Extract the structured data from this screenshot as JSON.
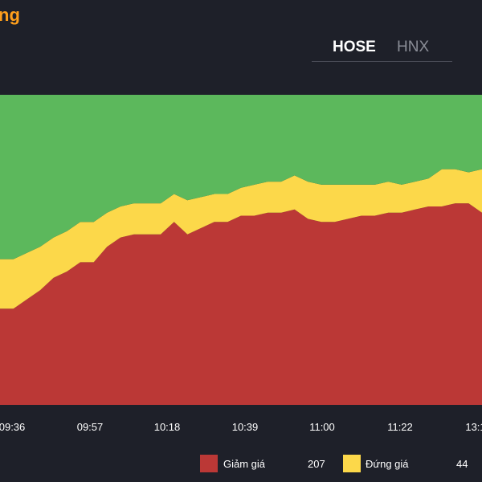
{
  "header": {
    "title": "ng",
    "tabs": [
      {
        "label": "HOSE",
        "active": true
      },
      {
        "label": "HNX",
        "active": false
      }
    ]
  },
  "colors": {
    "background": "#1e2029",
    "decrease": "#bb3836",
    "unchanged": "#fcd84a",
    "increase": "#5cb85c",
    "accent": "#ff9f1c"
  },
  "legend": [
    {
      "label": "Giảm giá",
      "value": "207",
      "color": "#bb3836"
    },
    {
      "label": "Đứng giá",
      "value": "44",
      "color": "#fcd84a"
    }
  ],
  "chart_data": {
    "type": "area",
    "stacked": true,
    "normalized_percent": true,
    "xticks": [
      "09:36",
      "09:57",
      "10:18",
      "10:39",
      "11:00",
      "11:22",
      "13:1"
    ],
    "x_minutes": [
      0,
      5,
      10,
      15,
      20,
      25,
      30,
      35,
      40,
      45,
      50,
      55,
      60,
      65,
      70,
      75,
      80,
      85,
      90,
      95,
      100,
      105,
      110,
      115,
      120,
      125,
      130,
      135,
      140,
      145,
      150,
      155,
      160,
      165,
      170,
      175,
      180
    ],
    "series": [
      {
        "name": "Giảm giá",
        "values": [
          31,
          31,
          34,
          37,
          41,
          43,
          46,
          46,
          51,
          54,
          55,
          55,
          55,
          59,
          55,
          57,
          59,
          59,
          61,
          61,
          62,
          62,
          63,
          60,
          59,
          59,
          60,
          61,
          61,
          62,
          62,
          63,
          64,
          64,
          65,
          65,
          62
        ]
      },
      {
        "name": "Đứng giá",
        "values": [
          16,
          16,
          15,
          14,
          13,
          13,
          13,
          13,
          11,
          10,
          10,
          10,
          10,
          9,
          11,
          10,
          9,
          9,
          9,
          10,
          10,
          10,
          11,
          12,
          12,
          12,
          11,
          10,
          10,
          10,
          9,
          9,
          9,
          12,
          11,
          10,
          14
        ]
      },
      {
        "values": [
          53,
          53,
          51,
          49,
          46,
          44,
          41,
          41,
          38,
          36,
          35,
          35,
          35,
          32,
          34,
          33,
          32,
          32,
          30,
          29,
          28,
          28,
          26,
          28,
          29,
          29,
          29,
          29,
          29,
          28,
          29,
          28,
          27,
          24,
          24,
          25,
          24
        ]
      }
    ],
    "ylim": [
      0,
      100
    ],
    "grid": false
  }
}
